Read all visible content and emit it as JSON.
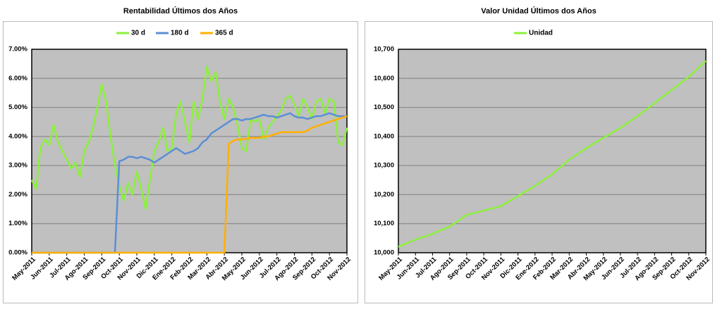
{
  "chart_data": [
    {
      "type": "line",
      "title": "Rentabilidad Últimos dos Años",
      "categories": [
        "May-2011",
        null,
        null,
        null,
        "Jun-2011",
        null,
        null,
        null,
        "Jul-2011",
        null,
        null,
        null,
        "Ago-2011",
        null,
        null,
        null,
        "Sep-2011",
        null,
        null,
        null,
        "Oct-2011",
        null,
        null,
        null,
        "Nov-2011",
        null,
        null,
        null,
        "Dic-2011",
        null,
        null,
        null,
        "Ene-2012",
        null,
        null,
        null,
        "Feb-2012",
        null,
        null,
        null,
        "Mar-2012",
        null,
        null,
        null,
        "Abr-2012",
        null,
        null,
        null,
        "May-2012",
        null,
        null,
        null,
        "Jun-2012",
        null,
        null,
        null,
        "Jul-2012",
        null,
        null,
        null,
        "Ago-2012",
        null,
        null,
        null,
        "Sep-2012",
        null,
        null,
        null,
        "Oct-2012",
        null,
        null,
        null,
        "Nov-2012"
      ],
      "series": [
        {
          "name": "30 d",
          "color": "#8cf03c",
          "values": [
            2.5,
            2.2,
            3.6,
            3.9,
            3.7,
            4.4,
            3.8,
            3.5,
            3.2,
            2.9,
            3.1,
            2.6,
            3.5,
            3.8,
            4.3,
            5.0,
            5.8,
            5.2,
            4.0,
            3.0,
            2.3,
            1.8,
            2.4,
            2.0,
            2.8,
            2.2,
            1.5,
            2.5,
            3.5,
            3.8,
            4.3,
            3.5,
            3.6,
            4.8,
            5.2,
            4.5,
            3.8,
            5.2,
            4.6,
            5.3,
            6.4,
            5.9,
            6.2,
            5.2,
            4.6,
            5.3,
            5.0,
            4.4,
            3.6,
            3.5,
            4.6,
            4.5,
            4.6,
            3.9,
            4.3,
            4.5,
            4.7,
            4.9,
            5.3,
            5.4,
            5.1,
            4.7,
            5.3,
            5.0,
            4.6,
            5.2,
            5.3,
            4.8,
            5.3,
            5.2,
            3.8,
            3.7,
            4.3
          ]
        },
        {
          "name": "180 d",
          "color": "#5b8fd4",
          "values": [
            0,
            0,
            0,
            0,
            0,
            0,
            0,
            0,
            0,
            0,
            0,
            0,
            0,
            0,
            0,
            0,
            0,
            0,
            0,
            0,
            3.15,
            3.2,
            3.3,
            3.3,
            3.25,
            3.3,
            3.25,
            3.2,
            3.1,
            3.2,
            3.3,
            3.4,
            3.5,
            3.6,
            3.5,
            3.4,
            3.45,
            3.5,
            3.6,
            3.8,
            3.9,
            4.1,
            4.2,
            4.3,
            4.4,
            4.5,
            4.6,
            4.6,
            4.55,
            4.6,
            4.6,
            4.65,
            4.7,
            4.75,
            4.7,
            4.7,
            4.65,
            4.7,
            4.75,
            4.8,
            4.7,
            4.65,
            4.65,
            4.6,
            4.65,
            4.7,
            4.7,
            4.75,
            4.8,
            4.75,
            4.7,
            4.7,
            4.7
          ]
        },
        {
          "name": "365 d",
          "color": "#ffb000",
          "values": [
            0,
            0,
            0,
            0,
            0,
            0,
            0,
            0,
            0,
            0,
            0,
            0,
            0,
            0,
            0,
            0,
            0,
            0,
            0,
            0,
            0,
            0,
            0,
            0,
            0,
            0,
            0,
            0,
            0,
            0,
            0,
            0,
            0,
            0,
            0,
            0,
            0,
            0,
            0,
            0,
            0,
            0,
            0,
            0,
            0,
            3.75,
            3.85,
            3.9,
            3.9,
            3.92,
            3.95,
            3.95,
            3.95,
            4.0,
            4.0,
            4.05,
            4.1,
            4.15,
            4.15,
            4.15,
            4.15,
            4.15,
            4.15,
            4.2,
            4.3,
            4.35,
            4.4,
            4.45,
            4.5,
            4.55,
            4.6,
            4.65,
            4.7
          ]
        }
      ],
      "ylim": [
        0,
        7
      ],
      "yticks": [
        {
          "value": 0,
          "label": "0.00%"
        },
        {
          "value": 1,
          "label": "1.00%"
        },
        {
          "value": 2,
          "label": "2.00%"
        },
        {
          "value": 3,
          "label": "3.00%"
        },
        {
          "value": 4,
          "label": "4.00%"
        },
        {
          "value": 5,
          "label": "5.00%"
        },
        {
          "value": 6,
          "label": "6.00%"
        },
        {
          "value": 7,
          "label": "7.00%"
        }
      ],
      "grid": true,
      "legend": "top"
    },
    {
      "type": "line",
      "title": "Valor Unidad Últimos dos Años",
      "categories": [
        "May-2011",
        "Jun-2011",
        "Jul-2011",
        "Ago-2011",
        "Sep-2011",
        "Oct-2011",
        "Nov-2011",
        "Dic-2011",
        "Ene-2012",
        "Feb-2012",
        "Mar-2012",
        "Abr-2012",
        "May-2012",
        "Jun-2012",
        "Jul-2012",
        "Ago-2012",
        "Sep-2012",
        "Oct-2012",
        "Nov-2012"
      ],
      "series": [
        {
          "name": "Unidad",
          "color": "#8cf03c",
          "values": [
            10020,
            10045,
            10065,
            10090,
            10130,
            10145,
            10160,
            10195,
            10230,
            10270,
            10320,
            10360,
            10395,
            10430,
            10470,
            10515,
            10560,
            10605,
            10660
          ]
        }
      ],
      "ylim": [
        10000,
        10700
      ],
      "yticks": [
        {
          "value": 10000,
          "label": "10,000"
        },
        {
          "value": 10100,
          "label": "10,100"
        },
        {
          "value": 10200,
          "label": "10,200"
        },
        {
          "value": 10300,
          "label": "10,300"
        },
        {
          "value": 10400,
          "label": "10,400"
        },
        {
          "value": 10500,
          "label": "10,500"
        },
        {
          "value": 10600,
          "label": "10,600"
        },
        {
          "value": 10700,
          "label": "10,700"
        }
      ],
      "grid": true,
      "legend": "top"
    }
  ]
}
